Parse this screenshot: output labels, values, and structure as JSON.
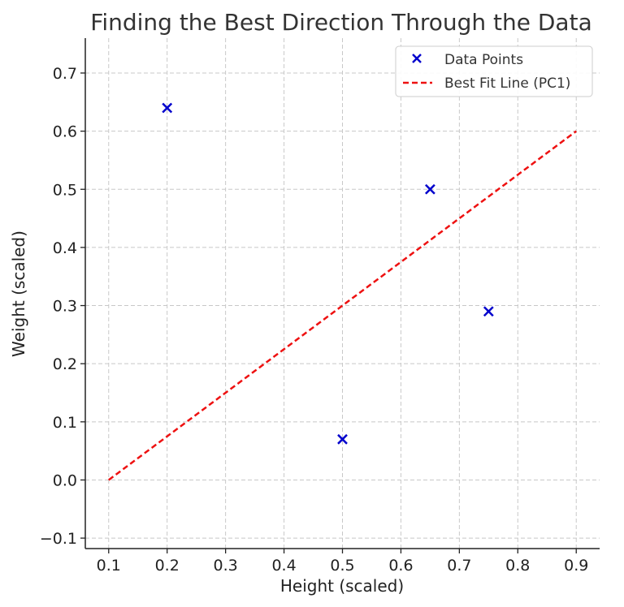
{
  "chart_data": {
    "type": "scatter",
    "title": "Finding the Best Direction Through the Data",
    "xlabel": "Height (scaled)",
    "ylabel": "Weight (scaled)",
    "xlim": [
      0.06,
      0.94
    ],
    "ylim": [
      -0.118,
      0.76
    ],
    "xticks": [
      0.1,
      0.2,
      0.3,
      0.4,
      0.5,
      0.6,
      0.7,
      0.8,
      0.9
    ],
    "xtick_labels": [
      "0.1",
      "0.2",
      "0.3",
      "0.4",
      "0.5",
      "0.6",
      "0.7",
      "0.8",
      "0.9"
    ],
    "yticks": [
      -0.1,
      0.0,
      0.1,
      0.2,
      0.3,
      0.4,
      0.5,
      0.6,
      0.7
    ],
    "ytick_labels": [
      "−0.1",
      "0.0",
      "0.1",
      "0.2",
      "0.3",
      "0.4",
      "0.5",
      "0.6",
      "0.7"
    ],
    "grid": true,
    "legend_position": "top-right",
    "series": [
      {
        "name": "Data Points",
        "kind": "scatter",
        "marker": "x",
        "color": "#0000cc",
        "x": [
          0.2,
          0.5,
          0.65,
          0.75
        ],
        "y": [
          0.64,
          0.07,
          0.5,
          0.29
        ]
      },
      {
        "name": "Best Fit Line (PC1)",
        "kind": "line",
        "style": "dashed",
        "color": "#ee1111",
        "x": [
          0.1,
          0.9
        ],
        "y": [
          0.0,
          0.6
        ]
      }
    ]
  }
}
